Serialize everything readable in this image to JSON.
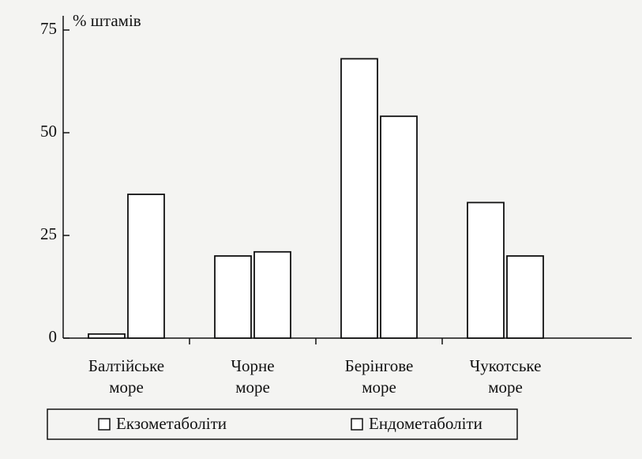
{
  "chart_data": {
    "type": "bar",
    "y_label": "% штамів",
    "categories": [
      "Балтійське море",
      "Чорне море",
      "Берінгове море",
      "Чукотське море"
    ],
    "series": [
      {
        "name": "Екзометаболіти",
        "color": "#ffffff",
        "values": [
          1,
          20,
          68,
          33
        ]
      },
      {
        "name": "Ендометаболіти",
        "color": "#ffffff",
        "values": [
          35,
          21,
          54,
          20
        ]
      }
    ],
    "ylim": [
      0,
      75
    ],
    "yticks": [
      0,
      25,
      50,
      75
    ],
    "grid": false
  }
}
